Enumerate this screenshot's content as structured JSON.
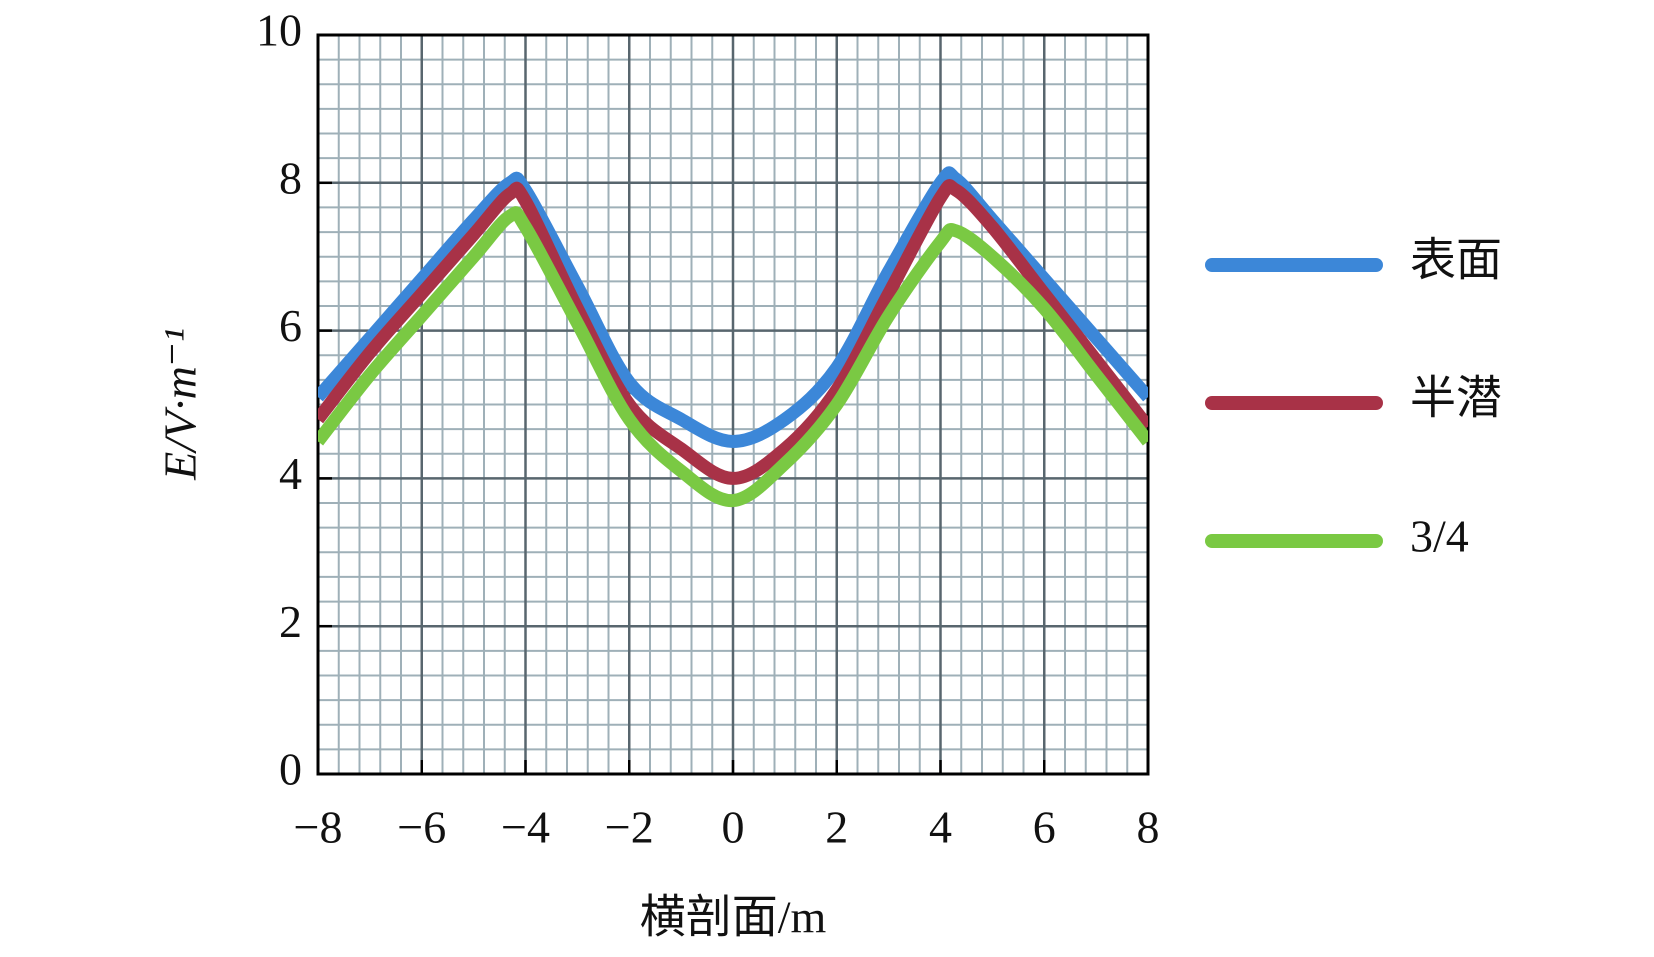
{
  "chart_data": {
    "type": "line",
    "x_label": "横剖面/m",
    "y_label": "E/V·m⁻¹",
    "x": [
      -8,
      -7,
      -6,
      -5,
      -4.3,
      -4,
      -3,
      -2,
      -1,
      0,
      1,
      2,
      3,
      4,
      4.3,
      5,
      6,
      7,
      8
    ],
    "series": [
      {
        "name": "表面",
        "color": "#3c87d8",
        "values": [
          5.1,
          5.9,
          6.7,
          7.5,
          8.0,
          7.9,
          6.6,
          5.3,
          4.8,
          4.5,
          4.8,
          5.5,
          6.8,
          8.0,
          8.05,
          7.5,
          6.7,
          5.9,
          5.1
        ]
      },
      {
        "name": "半潜",
        "color": "#a83247",
        "values": [
          4.8,
          5.7,
          6.5,
          7.3,
          7.85,
          7.75,
          6.3,
          5.0,
          4.4,
          4.0,
          4.4,
          5.2,
          6.5,
          7.8,
          7.9,
          7.4,
          6.5,
          5.6,
          4.7
        ]
      },
      {
        "name": "3/4",
        "color": "#7ac943",
        "values": [
          4.5,
          5.4,
          6.2,
          7.0,
          7.55,
          7.4,
          6.1,
          4.8,
          4.1,
          3.7,
          4.2,
          5.0,
          6.2,
          7.2,
          7.35,
          7.0,
          6.3,
          5.4,
          4.5
        ]
      }
    ],
    "xlim": [
      -8,
      8
    ],
    "xticks": [
      {
        "value": -8,
        "label": "−8"
      },
      {
        "value": -6,
        "label": "−6"
      },
      {
        "value": -4,
        "label": "−4"
      },
      {
        "value": -2,
        "label": "−2"
      },
      0,
      2,
      4,
      6,
      8
    ],
    "ylim": [
      0,
      10
    ],
    "yticks": [
      0,
      2,
      4,
      6,
      8,
      10
    ],
    "grid": true
  }
}
